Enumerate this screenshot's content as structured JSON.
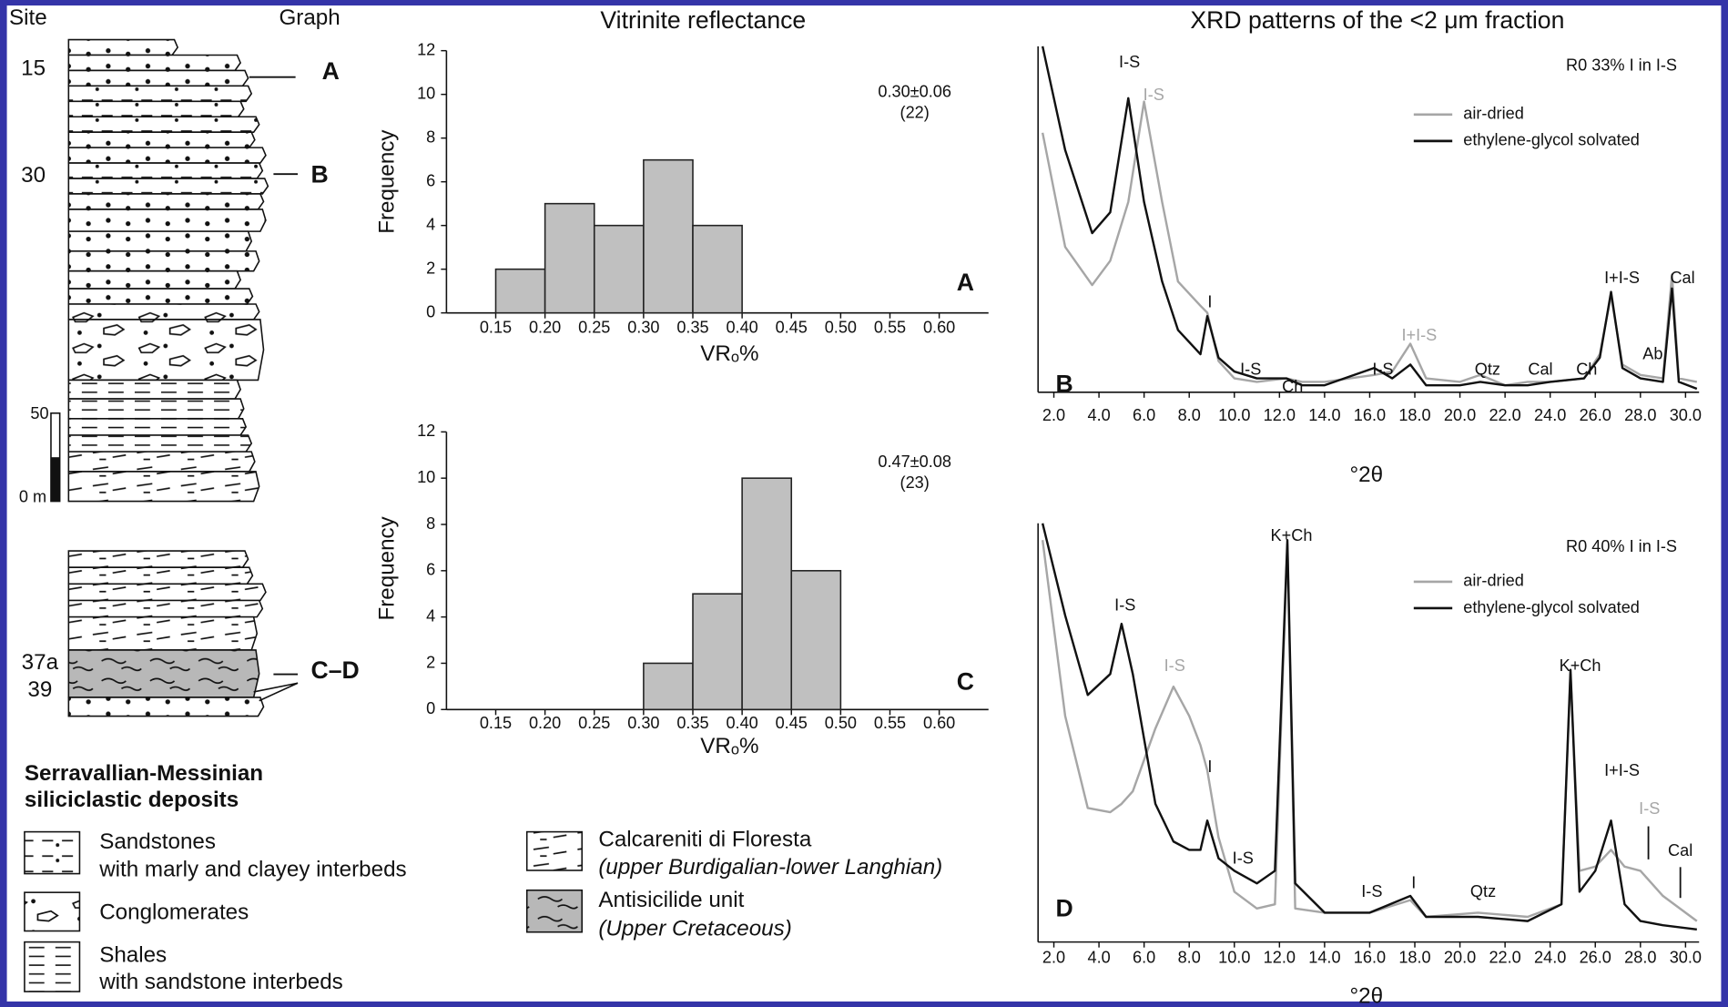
{
  "column": {
    "headers": [
      "Site",
      "Graph"
    ],
    "sites": [
      "15",
      "30",
      "37a",
      "39"
    ],
    "graph_labels": [
      "A",
      "B",
      "C–D"
    ],
    "scale": [
      "50",
      "0 m"
    ]
  },
  "legend": {
    "title": [
      "Serravallian-Messinian",
      "siliciclastic deposits"
    ],
    "items": [
      {
        "label": [
          "Sandstones",
          "with marly and clayey interbeds"
        ]
      },
      {
        "label": [
          "Conglomerates"
        ]
      },
      {
        "label": [
          "Shales",
          "with sandstone interbeds"
        ]
      },
      {
        "label": [
          "Calcareniti di Floresta",
          "(upper Burdigalian-lower Langhian)"
        ]
      },
      {
        "label": [
          "Antisicilide unit",
          "(Upper Cretaceous)"
        ]
      }
    ]
  },
  "chart_data": [
    {
      "type": "histogram",
      "title": "Vitrinite reflectance",
      "panel": "A",
      "stats": [
        "0.30±0.06",
        "(22)"
      ],
      "xlabel": "VRₒ%",
      "ylabel": "Frequency",
      "bins": [
        0.15,
        {
          "value": 0.2,
          "label": "0.20"
        },
        0.25,
        {
          "value": 0.3,
          "label": "0.30"
        },
        0.35,
        {
          "value": 0.4,
          "label": "0.40"
        }
      ],
      "values": [
        2,
        5,
        4,
        7,
        4
      ],
      "color": "#c0c0c0",
      "xlim": [
        0.1,
        0.65
      ],
      "ylim": [
        0,
        12
      ],
      "xticks": [
        0.15,
        {
          "value": 0.2,
          "label": "0.20"
        },
        0.25,
        {
          "value": 0.3,
          "label": "0.30"
        },
        0.35,
        {
          "value": 0.4,
          "label": "0.40"
        },
        0.45,
        {
          "value": 0.5,
          "label": "0.50"
        },
        0.55,
        {
          "value": 0.6,
          "label": "0.60"
        }
      ],
      "yticks": [
        0,
        2,
        4,
        6,
        8,
        10,
        12
      ]
    },
    {
      "type": "histogram",
      "panel": "C",
      "stats": [
        "0.47±0.08",
        "(23)"
      ],
      "xlabel": "VRₒ%",
      "ylabel": "Frequency",
      "bins": [
        {
          "value": 0.3,
          "label": "0.30"
        },
        0.35,
        {
          "value": 0.4,
          "label": "0.40"
        },
        0.45,
        {
          "value": 0.5,
          "label": "0.50"
        }
      ],
      "values": [
        2,
        5,
        10,
        6
      ],
      "color": "#c0c0c0",
      "xlim": [
        0.1,
        0.65
      ],
      "ylim": [
        0,
        12
      ],
      "xticks": [
        0.15,
        {
          "value": 0.2,
          "label": "0.20"
        },
        0.25,
        {
          "value": 0.3,
          "label": "0.30"
        },
        0.35,
        {
          "value": 0.4,
          "label": "0.40"
        },
        0.45,
        {
          "value": 0.5,
          "label": "0.50"
        },
        0.55,
        {
          "value": 0.6,
          "label": "0.60"
        }
      ],
      "yticks": [
        0,
        2,
        4,
        6,
        8,
        10,
        12
      ]
    },
    {
      "type": "line",
      "title": "XRD patterns of the <2 μm fraction",
      "panel": "B",
      "note": "R0 33% I in I-S",
      "xlabel": "°2θ",
      "x": [
        1.5,
        2.5,
        3.7,
        4.5,
        5.3,
        6.0,
        6.8,
        7.5,
        8.5,
        8.8,
        9.3,
        10,
        11,
        12.3,
        13,
        14,
        16.2,
        17,
        17.8,
        18.5,
        20,
        20.9,
        22,
        23,
        24,
        25.5,
        26.2,
        26.7,
        27.2,
        28,
        29,
        29.4,
        29.7,
        30.5
      ],
      "series": [
        {
          "name": "air-dried",
          "color": "#a6a6a6",
          "values": [
            75,
            42,
            31,
            38,
            55,
            84,
            55,
            32,
            25,
            23,
            9,
            4,
            3,
            4,
            3,
            3,
            5,
            6,
            14,
            4,
            3,
            5,
            2,
            3,
            3,
            4,
            11,
            28,
            8,
            5,
            4,
            34,
            4,
            3
          ]
        },
        {
          "name": "ethylene-glycol solvated",
          "color": "#111111",
          "values": [
            100,
            70,
            46,
            52,
            85,
            55,
            32,
            18,
            11,
            22,
            10,
            6,
            4,
            4,
            2,
            2,
            7,
            4,
            8,
            2,
            2,
            3,
            2,
            2,
            3,
            4,
            10,
            29,
            7,
            4,
            3,
            30,
            3,
            1
          ]
        }
      ],
      "annotations": [
        "I-S",
        "I-S",
        "I",
        "I-S",
        "Ch",
        "I-S",
        "I+I-S",
        "Qtz",
        "Cal",
        "Ch",
        "I+I-S",
        "Ab",
        "Cal"
      ],
      "xlim": [
        1.3,
        30.6
      ],
      "ylim": [
        0,
        100
      ],
      "xticks": [
        {
          "value": 2,
          "label": "2.0"
        },
        {
          "value": 4,
          "label": "4.0"
        },
        {
          "value": 6,
          "label": "6.0"
        },
        {
          "value": 8,
          "label": "8.0"
        },
        {
          "value": 10,
          "label": "10.0"
        },
        {
          "value": 12,
          "label": "12.0"
        },
        {
          "value": 14,
          "label": "14.0"
        },
        {
          "value": 16,
          "label": "16.0"
        },
        {
          "value": 18,
          "label": "18.0"
        },
        {
          "value": 20,
          "label": "20.0"
        },
        {
          "value": 22,
          "label": "22.0"
        },
        {
          "value": 24,
          "label": "24.0"
        },
        {
          "value": 26,
          "label": "26.0"
        },
        {
          "value": 28,
          "label": "28.0"
        },
        {
          "value": 30,
          "label": "30.0"
        }
      ]
    },
    {
      "type": "line",
      "panel": "D",
      "note": "R0 40% I in I-S",
      "xlabel": "°2θ",
      "x": [
        1.5,
        2.5,
        3.5,
        4.5,
        5.0,
        5.5,
        6.5,
        7.3,
        8.0,
        8.5,
        8.8,
        9.3,
        10,
        11,
        11.8,
        12.35,
        12.7,
        14,
        16,
        17.8,
        18.5,
        20.8,
        23,
        24.5,
        24.9,
        25.3,
        26,
        26.7,
        27.3,
        28,
        29,
        30.5
      ],
      "series": [
        {
          "name": "air-dried",
          "color": "#a6a6a6",
          "values": [
            96,
            54,
            32,
            31,
            33,
            36,
            51,
            61,
            54,
            47,
            41,
            25,
            12,
            8,
            9,
            95,
            8,
            7,
            7,
            10,
            6,
            7,
            6,
            9,
            64,
            17,
            18,
            22,
            18,
            17,
            11,
            5
          ]
        },
        {
          "name": "ethylene-glycol solvated",
          "color": "#111111",
          "values": [
            100,
            78,
            59,
            64,
            76,
            64,
            33,
            24,
            22,
            22,
            29,
            20,
            17,
            14,
            17,
            96,
            14,
            7,
            7,
            11,
            6,
            6,
            5,
            9,
            65,
            12,
            17,
            29,
            9,
            5,
            4,
            3
          ]
        }
      ],
      "annotations": [
        "I-S",
        "I-S",
        "K+Ch",
        "I",
        "I-S",
        "I-S",
        "I",
        "Qtz",
        "K+Ch",
        "I+I-S",
        "I-S",
        "Cal"
      ],
      "xlim": [
        1.3,
        30.6
      ],
      "ylim": [
        0,
        100
      ],
      "xticks": [
        {
          "value": 2,
          "label": "2.0"
        },
        {
          "value": 4,
          "label": "4.0"
        },
        {
          "value": 6,
          "label": "6.0"
        },
        {
          "value": 8,
          "label": "8.0"
        },
        {
          "value": 10,
          "label": "10.0"
        },
        {
          "value": 12,
          "label": "12.0"
        },
        {
          "value": 14,
          "label": "14.0"
        },
        {
          "value": 16,
          "label": "16.0"
        },
        {
          "value": 18,
          "label": "18.0"
        },
        {
          "value": 20,
          "label": "20.0"
        },
        {
          "value": 22,
          "label": "22.0"
        },
        {
          "value": 24,
          "label": "24.0"
        },
        {
          "value": 26,
          "label": "26.0"
        },
        {
          "value": 28,
          "label": "28.0"
        },
        {
          "value": 30,
          "label": "30.0"
        }
      ]
    }
  ]
}
